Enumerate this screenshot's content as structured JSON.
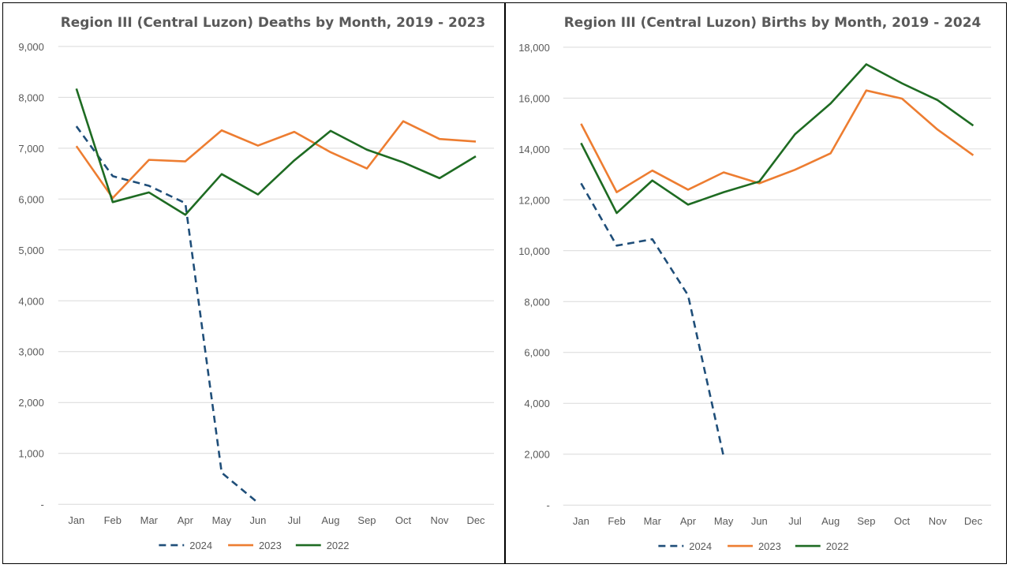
{
  "chart_data": [
    {
      "type": "line",
      "title": "Region III (Central Luzon) Deaths by Month,  2019 - 2023",
      "xlabel": "",
      "ylabel": "",
      "categories": [
        "Jan",
        "Feb",
        "Mar",
        "Apr",
        "May",
        "Jun",
        "Jul",
        "Aug",
        "Sep",
        "Oct",
        "Nov",
        "Dec"
      ],
      "ylim": [
        0,
        9000
      ],
      "yticks": [
        0,
        1000,
        2000,
        3000,
        4000,
        5000,
        6000,
        7000,
        8000,
        9000
      ],
      "ytick_labels": [
        "-",
        "1,000",
        "2,000",
        "3,000",
        "4,000",
        "5,000",
        "6,000",
        "7,000",
        "8,000",
        "9,000"
      ],
      "grid": true,
      "legend_position": "bottom",
      "series": [
        {
          "name": "2024",
          "color": "#1f4e79",
          "dashed": true,
          "values": [
            7430,
            6450,
            6260,
            5920,
            620,
            30,
            null,
            null,
            null,
            null,
            null,
            null
          ]
        },
        {
          "name": "2023",
          "color": "#ed7d31",
          "dashed": false,
          "values": [
            7040,
            6020,
            6770,
            6740,
            7350,
            7050,
            7320,
            6920,
            6600,
            7530,
            7180,
            7130
          ]
        },
        {
          "name": "2022",
          "color": "#1e6b22",
          "dashed": false,
          "values": [
            8170,
            5940,
            6130,
            5690,
            6490,
            6090,
            6760,
            7340,
            6970,
            6720,
            6410,
            6840
          ]
        }
      ]
    },
    {
      "type": "line",
      "title": "Region III (Central Luzon) Births by Month, 2019 - 2024",
      "xlabel": "",
      "ylabel": "",
      "categories": [
        "Jan",
        "Feb",
        "Mar",
        "Apr",
        "May",
        "Jun",
        "Jul",
        "Aug",
        "Sep",
        "Oct",
        "Nov",
        "Dec"
      ],
      "ylim": [
        0,
        18000
      ],
      "yticks": [
        0,
        2000,
        4000,
        6000,
        8000,
        10000,
        12000,
        14000,
        16000,
        18000
      ],
      "ytick_labels": [
        "-",
        "2,000",
        "4,000",
        "6,000",
        "8,000",
        "10,000",
        "12,000",
        "14,000",
        "16,000",
        "18,000"
      ],
      "grid": true,
      "legend_position": "bottom",
      "series": [
        {
          "name": "2024",
          "color": "#1f4e79",
          "dashed": true,
          "values": [
            12650,
            10200,
            10450,
            8250,
            1900,
            null,
            null,
            null,
            null,
            null,
            null,
            null
          ]
        },
        {
          "name": "2023",
          "color": "#ed7d31",
          "dashed": false,
          "values": [
            14990,
            12300,
            13150,
            12400,
            13080,
            12650,
            13180,
            13830,
            16300,
            15980,
            14760,
            13750
          ]
        },
        {
          "name": "2022",
          "color": "#1e6b22",
          "dashed": false,
          "values": [
            14230,
            11480,
            12760,
            11810,
            12300,
            12720,
            14580,
            15790,
            17330,
            16580,
            15920,
            14920
          ]
        }
      ]
    }
  ]
}
